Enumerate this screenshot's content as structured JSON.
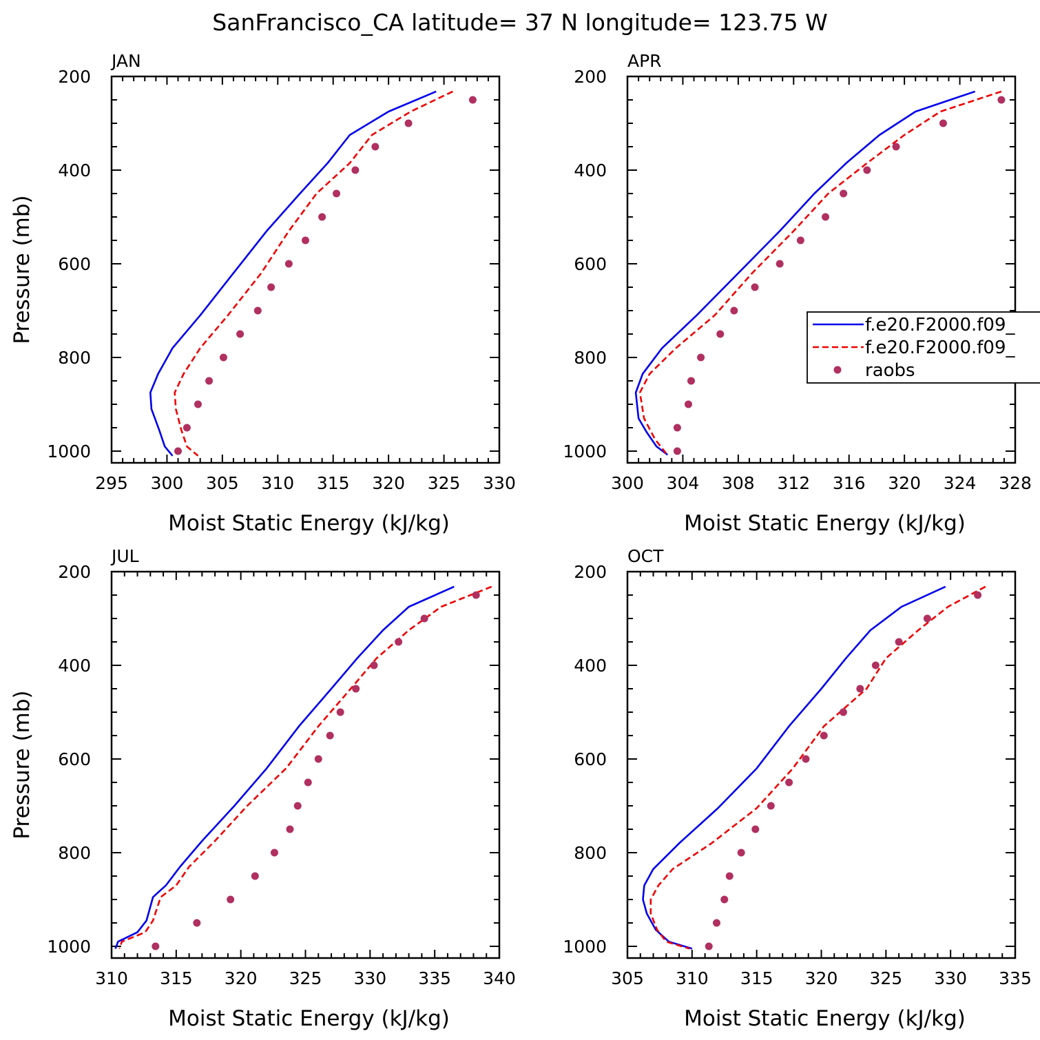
{
  "title": "SanFrancisco_CA  latitude= 37 N longitude= 123.75 W",
  "colors": {
    "model1": "#0000ee",
    "model2": "#ee0000",
    "raobs": "#b03060",
    "axis": "#000000"
  },
  "legend": {
    "placement": "right-middle of APR panel (clipped at page edge)",
    "entries": [
      {
        "label": "f.e20.F2000.f09_",
        "style": "solid",
        "color": "#0000ee"
      },
      {
        "label": "f.e20.F2000.f09_",
        "style": "dashed",
        "color": "#ee0000"
      },
      {
        "label": "raobs",
        "style": "marker",
        "color": "#b03060"
      }
    ]
  },
  "chart_data": [
    {
      "type": "line",
      "panel_label": "JAN",
      "xlabel": "Moist Static Energy (kJ/kg)",
      "ylabel": "Pressure (mb)",
      "xlim": [
        295,
        330
      ],
      "xticks": [
        295,
        300,
        305,
        310,
        315,
        320,
        325,
        330
      ],
      "ylim": [
        1025,
        200
      ],
      "yticks": [
        200,
        400,
        600,
        800,
        1000
      ],
      "series": [
        {
          "name": "f.e20.F2000.f09_",
          "style": "solid",
          "x": [
            324.3,
            320.0,
            316.5,
            314.5,
            312.0,
            309.0,
            306.0,
            303.0,
            300.5,
            299.2,
            298.5,
            298.6,
            299.3,
            299.8,
            300.5
          ],
          "y": [
            232,
            275,
            325,
            385,
            450,
            530,
            620,
            710,
            780,
            835,
            875,
            910,
            955,
            990,
            1010
          ]
        },
        {
          "name": "f.e20.F2000.f09_",
          "style": "dashed",
          "x": [
            325.8,
            322.0,
            318.5,
            316.5,
            313.5,
            311.0,
            308.5,
            305.5,
            303.0,
            301.5,
            300.7,
            300.8,
            301.3,
            301.8,
            302.8
          ],
          "y": [
            232,
            275,
            325,
            385,
            450,
            530,
            620,
            710,
            780,
            835,
            875,
            910,
            955,
            990,
            1010
          ]
        },
        {
          "name": "raobs",
          "style": "marker",
          "x": [
            327.6,
            321.8,
            318.8,
            317.0,
            315.3,
            314.0,
            312.5,
            311.0,
            309.4,
            308.2,
            306.6,
            305.1,
            303.8,
            302.8,
            301.8,
            301.0
          ],
          "y": [
            250,
            300,
            350,
            400,
            450,
            500,
            550,
            600,
            650,
            700,
            750,
            800,
            850,
            900,
            950,
            1000
          ]
        }
      ]
    },
    {
      "type": "line",
      "panel_label": "APR",
      "xlabel": "Moist Static Energy (kJ/kg)",
      "ylabel": "",
      "xlim": [
        300,
        328
      ],
      "xticks": [
        300,
        304,
        308,
        312,
        316,
        320,
        324,
        328
      ],
      "ylim": [
        1025,
        200
      ],
      "yticks": [
        200,
        400,
        600,
        800,
        1000
      ],
      "series": [
        {
          "name": "f.e20.F2000.f09_",
          "style": "solid",
          "x": [
            325.1,
            320.8,
            318.2,
            315.8,
            313.5,
            311.0,
            308.0,
            305.0,
            302.5,
            301.1,
            300.6,
            300.8,
            301.4,
            302.1,
            302.9
          ],
          "y": [
            232,
            275,
            325,
            385,
            450,
            530,
            620,
            710,
            780,
            835,
            875,
            930,
            960,
            990,
            1008
          ]
        },
        {
          "name": "f.e20.F2000.f09_",
          "style": "dashed",
          "x": [
            327.0,
            322.6,
            320.0,
            317.3,
            314.5,
            312.0,
            309.0,
            306.3,
            303.5,
            301.6,
            300.9,
            301.2,
            302.0,
            302.8
          ],
          "y": [
            232,
            275,
            325,
            385,
            450,
            530,
            620,
            710,
            780,
            835,
            875,
            930,
            975,
            1005
          ]
        },
        {
          "name": "raobs",
          "style": "marker",
          "x": [
            327.0,
            322.8,
            319.4,
            317.3,
            315.6,
            314.3,
            312.5,
            311.0,
            309.2,
            307.7,
            306.7,
            305.3,
            304.6,
            304.4,
            303.6,
            303.6
          ],
          "y": [
            250,
            300,
            350,
            400,
            450,
            500,
            550,
            600,
            650,
            700,
            750,
            800,
            850,
            900,
            950,
            1000
          ]
        }
      ]
    },
    {
      "type": "line",
      "panel_label": "JUL",
      "xlabel": "Moist Static Energy (kJ/kg)",
      "ylabel": "Pressure (mb)",
      "xlim": [
        310,
        340
      ],
      "xticks": [
        310,
        315,
        320,
        325,
        330,
        335,
        340
      ],
      "ylim": [
        1025,
        200
      ],
      "yticks": [
        200,
        400,
        600,
        800,
        1000
      ],
      "series": [
        {
          "name": "f.e20.F2000.f09_",
          "style": "solid",
          "x": [
            336.5,
            333.0,
            331.0,
            329.0,
            327.0,
            324.5,
            322.0,
            319.5,
            317.0,
            315.3,
            314.2,
            313.2,
            312.7,
            312.0,
            310.5,
            310.3
          ],
          "y": [
            232,
            275,
            325,
            385,
            450,
            530,
            620,
            700,
            775,
            830,
            870,
            895,
            945,
            970,
            990,
            1005
          ]
        },
        {
          "name": "f.e20.F2000.f09_",
          "style": "dashed",
          "x": [
            339.4,
            335.5,
            333.0,
            330.5,
            328.5,
            326.0,
            323.5,
            320.5,
            318.0,
            316.0,
            315.0,
            313.8,
            313.2,
            312.6,
            310.8,
            310.6
          ],
          "y": [
            232,
            275,
            325,
            385,
            450,
            530,
            620,
            700,
            775,
            830,
            870,
            895,
            945,
            970,
            990,
            1005
          ]
        },
        {
          "name": "raobs",
          "style": "marker",
          "x": [
            338.2,
            334.2,
            332.2,
            330.3,
            328.9,
            327.7,
            326.9,
            326.0,
            325.2,
            324.4,
            323.8,
            322.6,
            321.1,
            319.2,
            316.6,
            313.4
          ],
          "y": [
            250,
            300,
            350,
            400,
            450,
            500,
            550,
            600,
            650,
            700,
            750,
            800,
            850,
            900,
            950,
            1000
          ]
        }
      ]
    },
    {
      "type": "line",
      "panel_label": "OCT",
      "xlabel": "Moist Static Energy (kJ/kg)",
      "ylabel": "",
      "xlim": [
        305,
        335
      ],
      "xticks": [
        305,
        310,
        315,
        320,
        325,
        330,
        335
      ],
      "ylim": [
        1025,
        200
      ],
      "yticks": [
        200,
        400,
        600,
        800,
        1000
      ],
      "series": [
        {
          "name": "f.e20.F2000.f09_",
          "style": "solid",
          "x": [
            329.6,
            326.2,
            323.8,
            321.9,
            320.0,
            317.5,
            315.0,
            312.0,
            309.0,
            307.0,
            306.3,
            306.2,
            306.5,
            307.2,
            308.2,
            310.0
          ],
          "y": [
            232,
            275,
            325,
            385,
            450,
            530,
            620,
            705,
            780,
            835,
            870,
            900,
            930,
            965,
            990,
            1005
          ]
        },
        {
          "name": "f.e20.F2000.f09_",
          "style": "dashed",
          "x": [
            332.7,
            329.8,
            327.5,
            325.0,
            323.5,
            320.2,
            317.8,
            315.0,
            311.5,
            308.5,
            307.4,
            306.8,
            306.8,
            307.3,
            308.0,
            309.8
          ],
          "y": [
            232,
            275,
            325,
            385,
            450,
            530,
            620,
            705,
            780,
            835,
            870,
            900,
            930,
            965,
            990,
            1005
          ]
        },
        {
          "name": "raobs",
          "style": "marker",
          "x": [
            332.1,
            328.2,
            326.0,
            324.2,
            323.0,
            321.7,
            320.2,
            318.8,
            317.5,
            316.1,
            314.9,
            313.8,
            312.9,
            312.5,
            311.9,
            311.3
          ],
          "y": [
            250,
            300,
            350,
            400,
            450,
            500,
            550,
            600,
            650,
            700,
            750,
            800,
            850,
            900,
            950,
            1000
          ]
        }
      ]
    }
  ]
}
